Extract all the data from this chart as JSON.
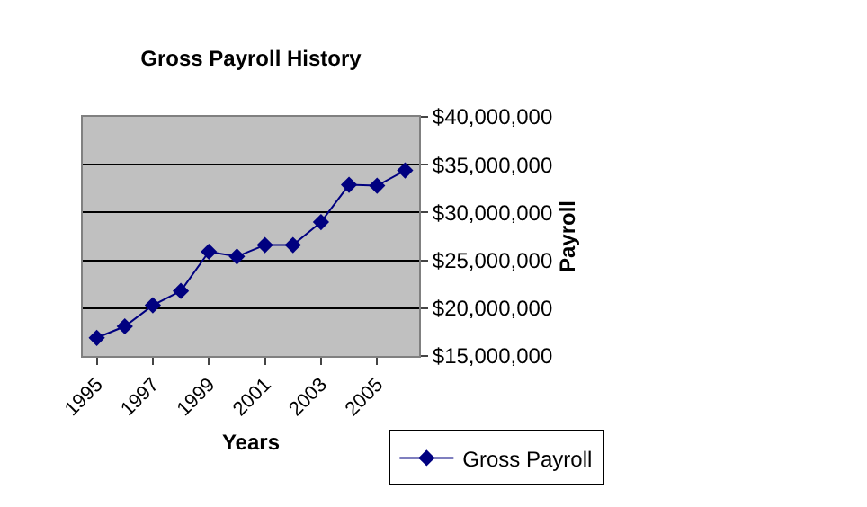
{
  "chart_data": {
    "type": "line",
    "title": "Gross Payroll History",
    "xlabel": "Years",
    "ylabel": "Payroll",
    "categories": [
      "1995",
      null,
      "1997",
      null,
      "1999",
      null,
      "2001",
      null,
      "2003",
      null,
      "2005",
      null
    ],
    "series": [
      {
        "name": "Gross Payroll",
        "color": "#000080",
        "values": [
          16900000.0,
          18100000.0,
          20300000.0,
          21800000.0,
          25900000.0,
          25400000.0,
          26600000.0,
          26600000.0,
          29000000.0,
          32900000.0,
          32800000.0,
          34400000.0
        ]
      }
    ],
    "ylim": [
      15000000,
      40000000
    ],
    "yticks": [
      {
        "value": 15000000,
        "label": "$15,000,000"
      },
      {
        "value": 20000000,
        "label": "$20,000,000"
      },
      {
        "value": 25000000,
        "label": "$25,000,000"
      },
      {
        "value": 30000000,
        "label": "$30,000,000"
      },
      {
        "value": 35000000,
        "label": "$35,000,000"
      },
      {
        "value": 40000000,
        "label": "$40,000,000"
      }
    ],
    "grid": "y",
    "legend": "bottom right",
    "marker": "diamond",
    "line_style": "solid"
  }
}
